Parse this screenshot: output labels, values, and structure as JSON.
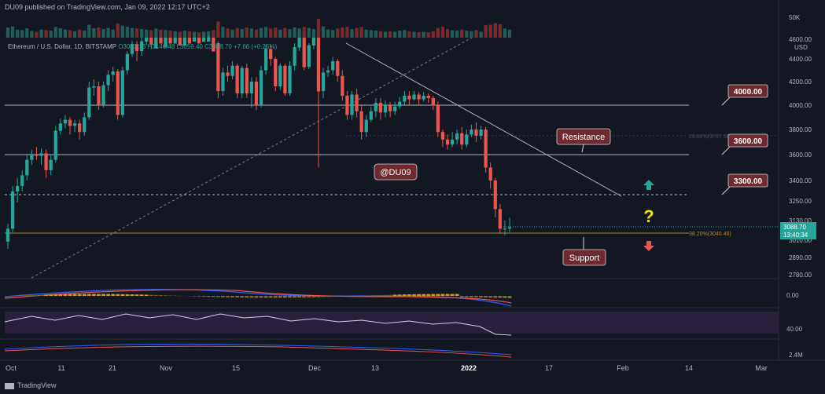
{
  "header": {
    "publisher": "DU09 published on TradingView.com, Jan 09, 2022 12:17 UTC+2",
    "symbol": "Ethereum / U.S. Dollar, 1D, BITSTAMP",
    "ohlc": "O3081.16  H3146.48  L3059.40  C3088.70  +7.66 (+0.25%)"
  },
  "footer": {
    "logo_text": "TradingView"
  },
  "price_axis": {
    "currency": "USD",
    "volume_top_label": "50K",
    "ticks": [
      "4600.00",
      "4400.00",
      "4200.00",
      "4000.00",
      "3800.00",
      "3600.00",
      "3400.00",
      "3250.00",
      "3130.00",
      "3010.00",
      "2890.00",
      "2780.00"
    ],
    "current_price": "3088.70",
    "countdown": "13:40:34",
    "macd_label": "0.00",
    "rsi_label": "40.00",
    "ind3_label": "2.4M"
  },
  "time_axis": {
    "labels": [
      "Oct",
      "11",
      "21",
      "Nov",
      "15",
      "Dec",
      "13",
      "2022",
      "17",
      "Feb",
      "14",
      "Mar"
    ]
  },
  "annotations": {
    "level_4000": "4000.00",
    "level_3600": "3600.00",
    "level_3300": "3300.00",
    "resistance": "Resistance",
    "support": "Support",
    "watermark": "@DU09",
    "question": "?",
    "fib_label": "38.20%(3040.48)",
    "fib_label_upper": "23.60%(3737.50)"
  },
  "colors": {
    "up": "#26a69a",
    "down": "#ef5350",
    "fib": "#b5872b",
    "box": "#6e2a2e",
    "question": "#f2e600"
  },
  "chart_data": {
    "type": "candlestick",
    "title": "Ethereum / U.S. Dollar, 1D, BITSTAMP",
    "ylim": [
      2750,
      4700
    ],
    "candles": [
      [
        3000,
        3080,
        2950,
        3110
      ],
      [
        3080,
        3320,
        3060,
        3360
      ],
      [
        3320,
        3360,
        3240,
        3420
      ],
      [
        3360,
        3440,
        3320,
        3480
      ],
      [
        3440,
        3560,
        3400,
        3600
      ],
      [
        3560,
        3600,
        3520,
        3640
      ],
      [
        3600,
        3590,
        3560,
        3660
      ],
      [
        3590,
        3610,
        3520,
        3650
      ],
      [
        3610,
        3480,
        3420,
        3640
      ],
      [
        3480,
        3560,
        3440,
        3600
      ],
      [
        3560,
        3790,
        3540,
        3830
      ],
      [
        3790,
        3850,
        3760,
        3890
      ],
      [
        3850,
        3880,
        3810,
        3920
      ],
      [
        3880,
        3830,
        3760,
        3900
      ],
      [
        3830,
        3850,
        3780,
        3880
      ],
      [
        3850,
        3780,
        3720,
        3880
      ],
      [
        3780,
        3900,
        3750,
        3940
      ],
      [
        3900,
        4150,
        3880,
        4200
      ],
      [
        4150,
        4160,
        4080,
        4220
      ],
      [
        4160,
        4000,
        3960,
        4200
      ],
      [
        4000,
        4170,
        3980,
        4200
      ],
      [
        4170,
        4260,
        4120,
        4300
      ],
      [
        4260,
        4290,
        4200,
        4330
      ],
      [
        4290,
        3920,
        3880,
        4310
      ],
      [
        3920,
        4300,
        3900,
        4330
      ],
      [
        4300,
        4450,
        4260,
        4480
      ],
      [
        4450,
        4550,
        4420,
        4580
      ],
      [
        4550,
        4480,
        4380,
        4580
      ],
      [
        4480,
        4580,
        4430,
        4620
      ],
      [
        4580,
        4620,
        4540,
        4660
      ],
      [
        4620,
        4550,
        4500,
        4650
      ],
      [
        4550,
        4660,
        4520,
        4700
      ],
      [
        4660,
        4600,
        4560,
        4680
      ],
      [
        4600,
        4700,
        4580,
        4720
      ],
      [
        4700,
        4640,
        4560,
        4720
      ],
      [
        4640,
        4700,
        4620,
        4720
      ],
      [
        4700,
        4620,
        4580,
        4720
      ],
      [
        4620,
        4700,
        4600,
        4720
      ],
      [
        4700,
        4640,
        4580,
        4720
      ],
      [
        4640,
        4680,
        4620,
        4700
      ],
      [
        4680,
        4620,
        4580,
        4700
      ],
      [
        4620,
        4660,
        4600,
        4680
      ],
      [
        4660,
        4700,
        4640,
        4700
      ],
      [
        4700,
        4560,
        4500,
        4700
      ],
      [
        4560,
        4120,
        4060,
        4580
      ],
      [
        4120,
        4280,
        4080,
        4320
      ],
      [
        4280,
        4250,
        4200,
        4340
      ],
      [
        4250,
        4340,
        4220,
        4380
      ],
      [
        4340,
        4100,
        4060,
        4360
      ],
      [
        4100,
        4320,
        4060,
        4340
      ],
      [
        4320,
        4100,
        4060,
        4360
      ],
      [
        4100,
        4200,
        3980,
        4240
      ],
      [
        4200,
        4000,
        3960,
        4240
      ],
      [
        4000,
        4300,
        3980,
        4340
      ],
      [
        4300,
        4500,
        4260,
        4540
      ],
      [
        4500,
        4400,
        4340,
        4540
      ],
      [
        4400,
        4160,
        4120,
        4420
      ],
      [
        4160,
        4340,
        4130,
        4360
      ],
      [
        4340,
        4100,
        4080,
        4360
      ],
      [
        4100,
        4340,
        4080,
        4380
      ],
      [
        4340,
        4520,
        4300,
        4560
      ],
      [
        4520,
        4620,
        4480,
        4660
      ],
      [
        4620,
        4330,
        4300,
        4640
      ],
      [
        4330,
        4540,
        4310,
        4560
      ],
      [
        4540,
        4620,
        4500,
        4700
      ],
      [
        4620,
        4120,
        3500,
        4640
      ],
      [
        4120,
        4280,
        4060,
        4320
      ],
      [
        4280,
        4300,
        4240,
        4340
      ],
      [
        4300,
        4380,
        4260,
        4420
      ],
      [
        4380,
        4250,
        4200,
        4400
      ],
      [
        4250,
        4080,
        4040,
        4300
      ],
      [
        4080,
        3920,
        3880,
        4120
      ],
      [
        3920,
        4090,
        3880,
        4120
      ],
      [
        4090,
        3950,
        3900,
        4140
      ],
      [
        3950,
        3780,
        3720,
        4000
      ],
      [
        3780,
        3880,
        3740,
        3920
      ],
      [
        3880,
        3950,
        3860,
        3990
      ],
      [
        3950,
        4020,
        3900,
        4060
      ],
      [
        4020,
        3940,
        3880,
        4060
      ],
      [
        3940,
        4000,
        3900,
        4040
      ],
      [
        4000,
        3950,
        3900,
        4030
      ],
      [
        3950,
        3990,
        3920,
        4030
      ],
      [
        3990,
        4030,
        3970,
        4070
      ],
      [
        4030,
        4080,
        4000,
        4120
      ],
      [
        4080,
        4050,
        4000,
        4120
      ],
      [
        4050,
        4090,
        4040,
        4120
      ],
      [
        4090,
        4050,
        4000,
        4110
      ],
      [
        4050,
        4080,
        4030,
        4110
      ],
      [
        4080,
        4060,
        4020,
        4100
      ],
      [
        4060,
        4000,
        3960,
        4080
      ],
      [
        4000,
        3780,
        3740,
        4030
      ],
      [
        3780,
        3720,
        3660,
        3800
      ],
      [
        3720,
        3680,
        3640,
        3760
      ],
      [
        3680,
        3720,
        3660,
        3780
      ],
      [
        3720,
        3770,
        3680,
        3800
      ],
      [
        3770,
        3680,
        3640,
        3820
      ],
      [
        3680,
        3760,
        3660,
        3800
      ],
      [
        3760,
        3800,
        3740,
        3840
      ],
      [
        3800,
        3750,
        3700,
        3860
      ],
      [
        3750,
        3800,
        3720,
        3830
      ],
      [
        3800,
        3500,
        3460,
        3820
      ],
      [
        3500,
        3400,
        3340,
        3540
      ],
      [
        3400,
        3200,
        3150,
        3420
      ],
      [
        3200,
        3080,
        3050,
        3230
      ],
      [
        3080,
        3081,
        3040,
        3130
      ],
      [
        3081,
        3088,
        3059,
        3146
      ]
    ],
    "volume": [
      38,
      42,
      30,
      28,
      35,
      25,
      22,
      30,
      28,
      26,
      40,
      35,
      30,
      28,
      24,
      30,
      26,
      48,
      35,
      38,
      32,
      36,
      30,
      52,
      45,
      40,
      36,
      34,
      32,
      30,
      28,
      34,
      30,
      28,
      26,
      24,
      22,
      26,
      24,
      22,
      20,
      22,
      24,
      28,
      60,
      40,
      34,
      30,
      36,
      32,
      38,
      34,
      30,
      36,
      40,
      34,
      38,
      30,
      36,
      32,
      38,
      34,
      40,
      36,
      32,
      70,
      42,
      30,
      28,
      34,
      38,
      40,
      32,
      36,
      40,
      30,
      28,
      26,
      24,
      22,
      24,
      22,
      26,
      28,
      24,
      22,
      20,
      22,
      20,
      24,
      36,
      40,
      32,
      28,
      26,
      30,
      26,
      24,
      28,
      22,
      46,
      48,
      54,
      50,
      34,
      30
    ],
    "horizontal_levels": [
      4000,
      3600,
      3300,
      3040.48
    ],
    "fibonacci": [
      {
        "label": "38.20%",
        "value": 3040.48
      },
      {
        "label": "23.60%",
        "value": 3737.5
      }
    ]
  }
}
